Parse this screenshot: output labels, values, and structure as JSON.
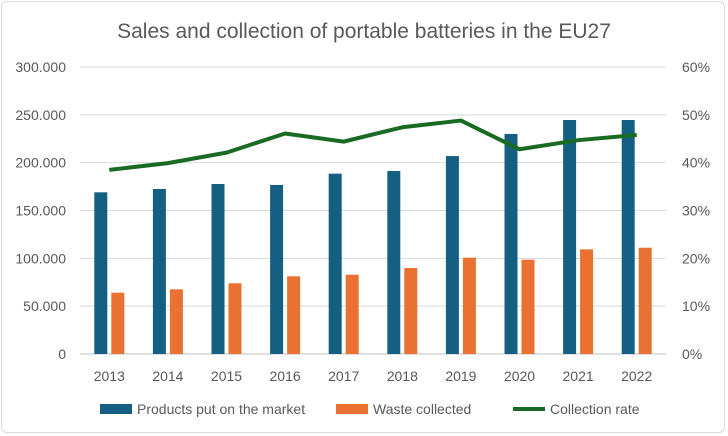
{
  "chart_data": {
    "type": "bar",
    "title": "Sales and collection of portable batteries in the EU27",
    "categories": [
      "2013",
      "2014",
      "2015",
      "2016",
      "2017",
      "2018",
      "2019",
      "2020",
      "2021",
      "2022"
    ],
    "series": [
      {
        "name": "Products put on the market",
        "kind": "bar",
        "axis": "left",
        "color": "#156082",
        "values": [
          169000,
          172500,
          177700,
          176700,
          188500,
          191300,
          206900,
          230000,
          244600,
          244600
        ]
      },
      {
        "name": "Waste collected",
        "kind": "bar",
        "axis": "left",
        "color": "#E97132",
        "values": [
          64100,
          67600,
          73900,
          81200,
          82900,
          89900,
          100700,
          98600,
          109400,
          111100
        ]
      },
      {
        "name": "Collection rate",
        "kind": "line",
        "axis": "right",
        "color": "#196B24",
        "values": [
          38.5,
          39.9,
          42.1,
          46.1,
          44.4,
          47.4,
          48.8,
          42.8,
          44.7,
          45.8
        ]
      }
    ],
    "y_left": {
      "lim": [
        0,
        300000
      ],
      "ticks": [
        0,
        50000,
        100000,
        150000,
        200000,
        250000,
        300000
      ],
      "tick_labels": [
        "0",
        "50.000",
        "100.000",
        "150.000",
        "200.000",
        "250.000",
        "300.000"
      ]
    },
    "y_right": {
      "lim": [
        0,
        60
      ],
      "ticks": [
        0,
        10,
        20,
        30,
        40,
        50,
        60
      ],
      "tick_labels": [
        "0%",
        "10%",
        "20%",
        "30%",
        "40%",
        "50%",
        "60%"
      ]
    },
    "grid": true,
    "legend": "bottom"
  }
}
